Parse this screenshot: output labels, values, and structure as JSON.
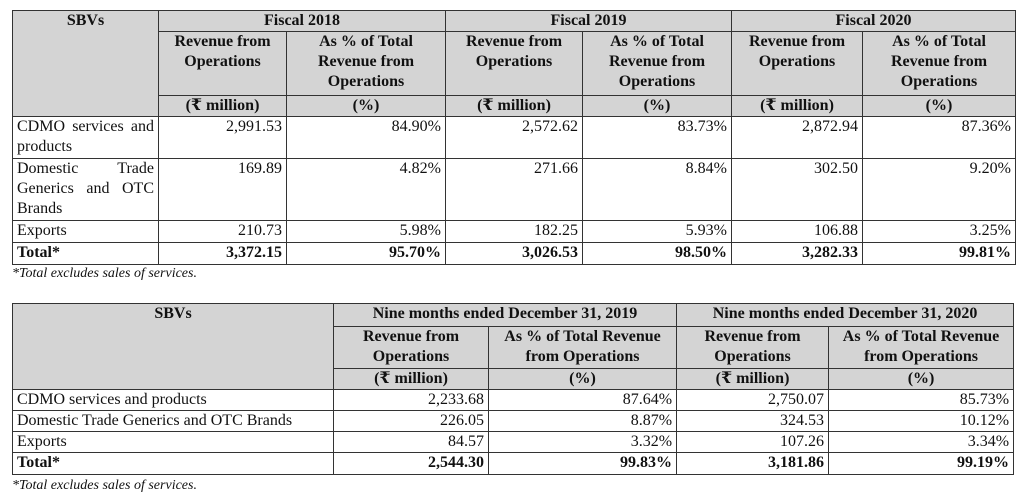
{
  "table1": {
    "sbv_header": "SBVs",
    "periods": [
      "Fiscal 2018",
      "Fiscal 2019",
      "Fiscal 2020"
    ],
    "col_revenue": "Revenue from Operations",
    "col_percent": "As % of Total Revenue from Operations",
    "unit_revenue": "(₹ million)",
    "unit_percent": "(%)",
    "rows": [
      {
        "label": "CDMO services and products",
        "values": [
          "2,991.53",
          "84.90%",
          "2,572.62",
          "83.73%",
          "2,872.94",
          "87.36%"
        ]
      },
      {
        "label": "Domestic Trade Generics and OTC Brands",
        "values": [
          "169.89",
          "4.82%",
          "271.66",
          "8.84%",
          "302.50",
          "9.20%"
        ]
      },
      {
        "label": "Exports",
        "values": [
          "210.73",
          "5.98%",
          "182.25",
          "5.93%",
          "106.88",
          "3.25%"
        ]
      },
      {
        "label": "Total*",
        "values": [
          "3,372.15",
          "95.70%",
          "3,026.53",
          "98.50%",
          "3,282.33",
          "99.81%"
        ]
      }
    ],
    "footnote": "*Total excludes sales of services."
  },
  "table2": {
    "sbv_header": "SBVs",
    "periods": [
      "Nine months ended December 31, 2019",
      "Nine months ended December 31, 2020"
    ],
    "col_revenue": "Revenue from Operations",
    "col_percent": "As % of Total Revenue from Operations",
    "unit_revenue": "(₹ million)",
    "unit_percent": "(%)",
    "rows": [
      {
        "label": "CDMO services and products",
        "values": [
          "2,233.68",
          "87.64%",
          "2,750.07",
          "85.73%"
        ]
      },
      {
        "label": "Domestic Trade Generics and OTC Brands",
        "values": [
          "226.05",
          "8.87%",
          "324.53",
          "10.12%"
        ]
      },
      {
        "label": "Exports",
        "values": [
          "84.57",
          "3.32%",
          "107.26",
          "3.34%"
        ]
      },
      {
        "label": "Total*",
        "values": [
          "2,544.30",
          "99.83%",
          "3,181.86",
          "99.19%"
        ]
      }
    ],
    "footnote": "*Total excludes sales of services."
  }
}
